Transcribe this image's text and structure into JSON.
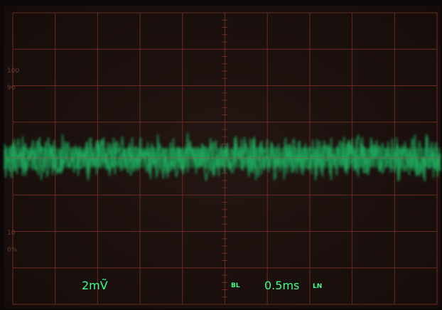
{
  "readouts": {
    "volts_per_div": "2mṼ",
    "bandwidth": "BL",
    "time_per_div": "0.5ms",
    "trigger": "LN"
  },
  "graticule_labels": [
    "100",
    "90",
    "10",
    "0%"
  ]
}
